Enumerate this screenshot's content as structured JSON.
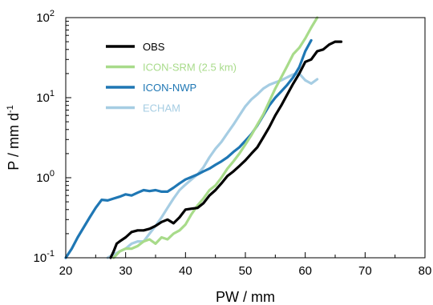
{
  "chart_data": {
    "type": "line",
    "xlabel": "PW / mm",
    "ylabel": "P / mm d",
    "ylabel_sup": "-1",
    "xlim": [
      20,
      80
    ],
    "ylim": [
      0.1,
      100
    ],
    "yscale": "log",
    "xticks": [
      "20",
      "30",
      "40",
      "50",
      "60",
      "70",
      "80"
    ],
    "yticks": [
      {
        "base": "10",
        "exp": "-1"
      },
      {
        "base": "10",
        "exp": "0"
      },
      {
        "base": "10",
        "exp": "1"
      },
      {
        "base": "10",
        "exp": "2"
      }
    ],
    "grid": false,
    "legend_position": "top-left",
    "series": [
      {
        "name": "OBS",
        "color": "#000000",
        "x": [
          27.5,
          28,
          28.5,
          29,
          30,
          31,
          32,
          33,
          34,
          35,
          36,
          37,
          38,
          39,
          40,
          41,
          42,
          43,
          44,
          45,
          46,
          47,
          48,
          49,
          50,
          51,
          52,
          53,
          54,
          55,
          56,
          57,
          58,
          59,
          60,
          61,
          62,
          63,
          64,
          65,
          66
        ],
        "y": [
          0.1,
          0.12,
          0.15,
          0.16,
          0.18,
          0.21,
          0.22,
          0.22,
          0.23,
          0.25,
          0.28,
          0.3,
          0.27,
          0.32,
          0.4,
          0.41,
          0.42,
          0.48,
          0.6,
          0.7,
          0.85,
          1.05,
          1.2,
          1.4,
          1.65,
          2.0,
          2.4,
          3.2,
          4.3,
          6.0,
          8.0,
          11,
          15,
          20,
          28,
          30,
          38,
          40,
          46,
          50,
          50
        ]
      },
      {
        "name": "ICON-SRM (2.5 km)",
        "color": "#a8db8a",
        "x": [
          28,
          29,
          30,
          31,
          32,
          33,
          34,
          35,
          36,
          37,
          38,
          39,
          40,
          41,
          42,
          43,
          44,
          45,
          46,
          47,
          48,
          49,
          50,
          51,
          52,
          53,
          54,
          55,
          56,
          57,
          58,
          59,
          60,
          61,
          62
        ],
        "y": [
          0.1,
          0.12,
          0.13,
          0.13,
          0.14,
          0.16,
          0.17,
          0.15,
          0.18,
          0.17,
          0.2,
          0.22,
          0.26,
          0.35,
          0.45,
          0.55,
          0.7,
          0.8,
          1.0,
          1.3,
          1.6,
          2.0,
          2.6,
          3.4,
          4.6,
          6.2,
          9.0,
          13,
          18,
          25,
          35,
          42,
          55,
          75,
          100
        ]
      },
      {
        "name": "ICON-NWP",
        "color": "#1f77b4",
        "x": [
          20,
          21,
          22,
          23,
          24,
          25,
          26,
          27,
          28,
          29,
          30,
          31,
          32,
          33,
          34,
          35,
          36,
          37,
          38,
          39,
          40,
          41,
          42,
          43,
          44,
          45,
          46,
          47,
          48,
          49,
          50,
          51,
          52,
          53,
          54,
          55,
          56,
          57,
          58,
          59,
          60,
          61
        ],
        "y": [
          0.1,
          0.13,
          0.18,
          0.24,
          0.32,
          0.42,
          0.53,
          0.52,
          0.55,
          0.58,
          0.62,
          0.6,
          0.65,
          0.7,
          0.68,
          0.7,
          0.67,
          0.67,
          0.75,
          0.85,
          0.95,
          1.02,
          1.1,
          1.2,
          1.3,
          1.45,
          1.6,
          1.8,
          2.1,
          2.4,
          2.9,
          3.5,
          4.5,
          6.0,
          8.0,
          10,
          12,
          14.5,
          18,
          24,
          38,
          52
        ]
      },
      {
        "name": "ECHAM",
        "color": "#a6cde3",
        "x": [
          27,
          28,
          29,
          30,
          31,
          32,
          33,
          34,
          35,
          36,
          37,
          38,
          39,
          40,
          41,
          42,
          43,
          44,
          45,
          46,
          47,
          48,
          49,
          50,
          51,
          52,
          53,
          54,
          55,
          56,
          57,
          58,
          59,
          60,
          61,
          62
        ],
        "y": [
          0.1,
          0.11,
          0.12,
          0.13,
          0.15,
          0.16,
          0.16,
          0.2,
          0.25,
          0.32,
          0.42,
          0.55,
          0.7,
          0.82,
          0.95,
          1.1,
          1.35,
          1.8,
          2.3,
          2.8,
          3.6,
          4.6,
          6.0,
          7.8,
          9.5,
          11,
          13,
          14.5,
          15.5,
          16.5,
          18,
          19.5,
          20,
          16.5,
          15,
          17
        ]
      }
    ]
  }
}
